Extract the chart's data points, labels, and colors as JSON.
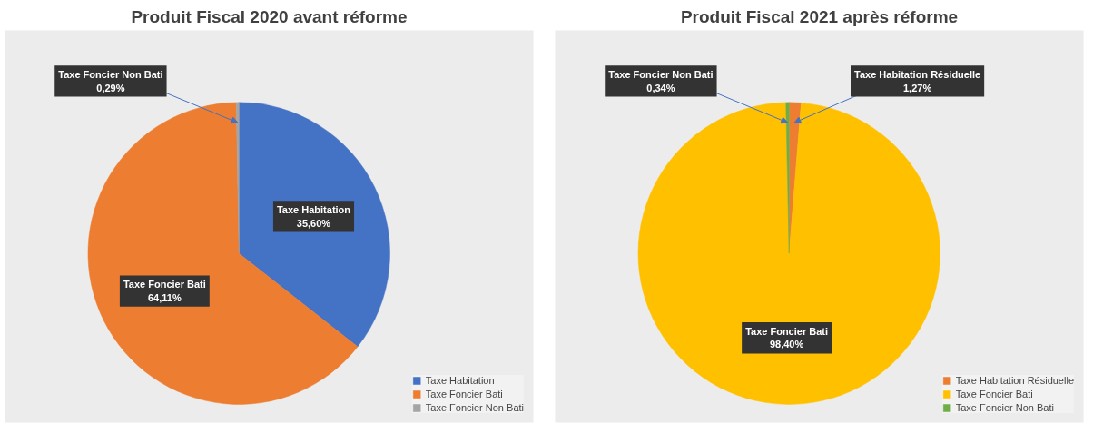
{
  "chart_data": [
    {
      "type": "pie",
      "title": "Produit Fiscal 2020 avant réforme",
      "categories": [
        "Taxe Habitation",
        "Taxe Foncier Bati",
        "Taxe Foncier Non Bati"
      ],
      "values": [
        35.6,
        64.11,
        0.29
      ],
      "colors": [
        "#4472c4",
        "#ed7d31",
        "#a5a5a5"
      ],
      "value_labels": [
        "35,60%",
        "64,11%",
        "0,29%"
      ],
      "legend": "bottom right"
    },
    {
      "type": "pie",
      "title": "Produit Fiscal 2021 après réforme",
      "categories": [
        "Taxe Habitation Résiduelle",
        "Taxe Foncier Bati",
        "Taxe Foncier Non Bati"
      ],
      "values": [
        1.27,
        98.4,
        0.34
      ],
      "colors": [
        "#ed7d31",
        "#ffc000",
        "#70ad47"
      ],
      "value_labels": [
        "1,27%",
        "98,40%",
        "0,34%"
      ],
      "legend": "bottom right"
    }
  ]
}
